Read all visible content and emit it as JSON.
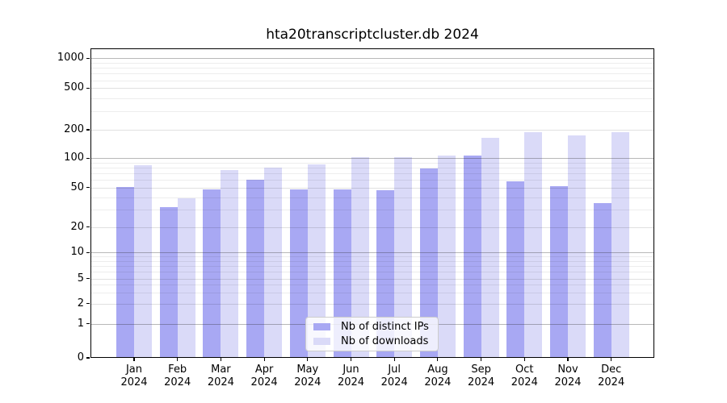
{
  "chart_data": {
    "type": "bar",
    "title": "hta20transcriptcluster.db 2024",
    "year_label": "2024",
    "categories": [
      "Jan",
      "Feb",
      "Mar",
      "Apr",
      "May",
      "Jun",
      "Jul",
      "Aug",
      "Sep",
      "Oct",
      "Nov",
      "Dec"
    ],
    "series": [
      {
        "name": "Nb of distinct IPs",
        "color": "#a8a8f3",
        "values": [
          51,
          32,
          48,
          60,
          48,
          48,
          47,
          78,
          107,
          58,
          52,
          35
        ]
      },
      {
        "name": "Nb of downloads",
        "color": "#dadaf8",
        "values": [
          85,
          39,
          75,
          80,
          86,
          102,
          103,
          107,
          164,
          190,
          173,
          188
        ]
      }
    ],
    "y_ticks": [
      0,
      1,
      2,
      5,
      10,
      20,
      50,
      100,
      200,
      500,
      1000
    ],
    "major_gridlines": [
      1,
      10,
      100,
      1000
    ],
    "minor_gridlines": [
      3,
      4,
      6,
      7,
      8,
      9,
      30,
      40,
      60,
      70,
      80,
      90,
      300,
      400,
      600,
      700,
      800,
      900
    ],
    "ylim": [
      0,
      1000
    ],
    "scale": "log-like (0 anchored at baseline)",
    "grid": true,
    "legend_position": "lower center inside plot"
  }
}
